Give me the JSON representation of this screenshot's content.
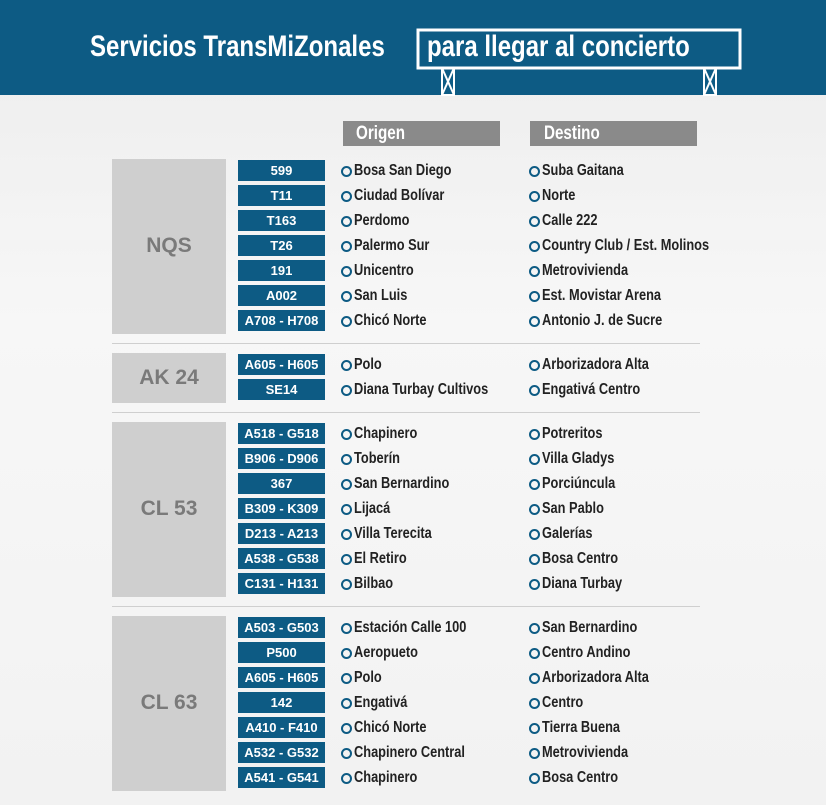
{
  "header": {
    "title": "Servicios TransMiZonales",
    "highlight": "para llegar al concierto"
  },
  "columns": {
    "origin": "Origen",
    "destination": "Destino"
  },
  "groups": [
    {
      "corridor": "NQS",
      "rows": [
        {
          "route": "599",
          "origin": "Bosa San Diego",
          "destination": "Suba Gaitana"
        },
        {
          "route": "T11",
          "origin": "Ciudad Bolívar",
          "destination": "Norte"
        },
        {
          "route": "T163",
          "origin": "Perdomo",
          "destination": "Calle 222"
        },
        {
          "route": "T26",
          "origin": "Palermo Sur",
          "destination": "Country Club / Est. Molinos"
        },
        {
          "route": "191",
          "origin": "Unicentro",
          "destination": "Metrovivienda"
        },
        {
          "route": "A002",
          "origin": "San Luis",
          "destination": "Est. Movistar Arena"
        },
        {
          "route": "A708 - H708",
          "origin": "Chicó Norte",
          "destination": "Antonio J. de Sucre"
        }
      ]
    },
    {
      "corridor": "AK 24",
      "rows": [
        {
          "route": "A605 - H605",
          "origin": "Polo",
          "destination": "Arborizadora Alta"
        },
        {
          "route": "SE14",
          "origin": "Diana Turbay Cultivos",
          "destination": "Engativá Centro"
        }
      ]
    },
    {
      "corridor": "CL 53",
      "rows": [
        {
          "route": "A518 - G518",
          "origin": "Chapinero",
          "destination": "Potreritos"
        },
        {
          "route": "B906 - D906",
          "origin": "Toberín",
          "destination": "Villa Gladys"
        },
        {
          "route": "367",
          "origin": "San Bernardino",
          "destination": "Porciúncula"
        },
        {
          "route": "B309 - K309",
          "origin": "Lijacá",
          "destination": "San Pablo"
        },
        {
          "route": "D213 - A213",
          "origin": "Villa Terecita",
          "destination": "Galerías"
        },
        {
          "route": "A538 - G538",
          "origin": "El Retiro",
          "destination": "Bosa Centro"
        },
        {
          "route": "C131 - H131",
          "origin": "Bilbao",
          "destination": "Diana Turbay"
        }
      ]
    },
    {
      "corridor": "CL 63",
      "rows": [
        {
          "route": "A503 - G503",
          "origin": "Estación Calle 100",
          "destination": "San Bernardino"
        },
        {
          "route": "P500",
          "origin": "Aeropueto",
          "destination": "Centro Andino"
        },
        {
          "route": "A605 - H605",
          "origin": "Polo",
          "destination": "Arborizadora Alta"
        },
        {
          "route": "142",
          "origin": "Engativá",
          "destination": "Centro"
        },
        {
          "route": "A410 - F410",
          "origin": "Chicó Norte",
          "destination": "Tierra Buena"
        },
        {
          "route": "A532 - G532",
          "origin": "Chapinero Central",
          "destination": "Metrovivienda"
        },
        {
          "route": "A541 - G541",
          "origin": "Chapinero",
          "destination": "Bosa Centro"
        }
      ]
    }
  ]
}
